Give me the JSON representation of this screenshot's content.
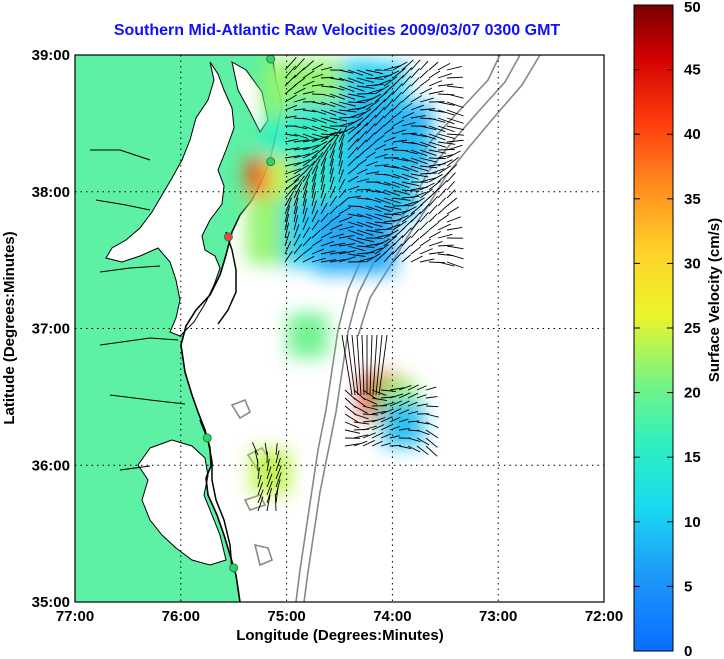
{
  "title": "Southern Mid-Atlantic Raw Velocities 2009/03/07 0300 GMT",
  "axes": {
    "xlabel": "Longitude (Degrees:Minutes)",
    "ylabel": "Latitude (Degrees:Minutes)",
    "x_ticks": [
      "77:00",
      "76:00",
      "75:00",
      "74:00",
      "73:00",
      "72:00"
    ],
    "y_ticks": [
      "39:00",
      "38:00",
      "37:00",
      "36:00",
      "35:00"
    ],
    "xlim": [
      -77,
      -72
    ],
    "ylim": [
      35,
      39
    ],
    "grid": true
  },
  "colorbar": {
    "label": "Surface Velocity (cm/s)",
    "ticks": [
      "50",
      "45",
      "40",
      "35",
      "30",
      "25",
      "20",
      "15",
      "10",
      "5",
      "0"
    ],
    "range": [
      0,
      50
    ],
    "colormap": "jet"
  },
  "colors": {
    "land": "#5ef0a4",
    "coast": "#000000",
    "bathymetry": "#888888",
    "title": "#1010ff",
    "station": "#2ed36e",
    "station_offline": "#ff4040"
  },
  "chart_data": {
    "type": "heatmap",
    "description_units": "lon/lat degrees; speed cm/s",
    "speed_patches": [
      {
        "lon": -74.55,
        "lat": 38.72,
        "speed": 12
      },
      {
        "lon": -74.25,
        "lat": 38.7,
        "speed": 10
      },
      {
        "lon": -74.85,
        "lat": 38.72,
        "speed": 22
      },
      {
        "lon": -74.6,
        "lat": 38.4,
        "speed": 13
      },
      {
        "lon": -74.3,
        "lat": 38.35,
        "speed": 9
      },
      {
        "lon": -74.0,
        "lat": 38.4,
        "speed": 8
      },
      {
        "lon": -74.85,
        "lat": 38.3,
        "speed": 16
      },
      {
        "lon": -75.0,
        "lat": 38.0,
        "speed": 40
      },
      {
        "lon": -74.8,
        "lat": 38.0,
        "speed": 24
      },
      {
        "lon": -74.55,
        "lat": 38.05,
        "speed": 14
      },
      {
        "lon": -74.15,
        "lat": 38.05,
        "speed": 9
      },
      {
        "lon": -75.0,
        "lat": 37.72,
        "speed": 22
      },
      {
        "lon": -74.65,
        "lat": 37.7,
        "speed": 10
      },
      {
        "lon": -74.35,
        "lat": 37.65,
        "speed": 7
      },
      {
        "lon": -74.8,
        "lat": 36.95,
        "speed": 20
      },
      {
        "lon": -74.1,
        "lat": 36.5,
        "speed": 46
      },
      {
        "lon": -73.95,
        "lat": 36.45,
        "speed": 22
      },
      {
        "lon": -73.9,
        "lat": 36.3,
        "speed": 9
      },
      {
        "lon": -75.15,
        "lat": 35.95,
        "speed": 24
      }
    ],
    "stations": [
      {
        "lon": -75.15,
        "lat": 38.97,
        "status": "online"
      },
      {
        "lon": -75.15,
        "lat": 38.22,
        "status": "online"
      },
      {
        "lon": -75.55,
        "lat": 37.67,
        "status": "offline"
      },
      {
        "lon": -75.75,
        "lat": 36.2,
        "status": "online"
      },
      {
        "lon": -75.5,
        "lat": 35.25,
        "status": "online"
      }
    ]
  }
}
